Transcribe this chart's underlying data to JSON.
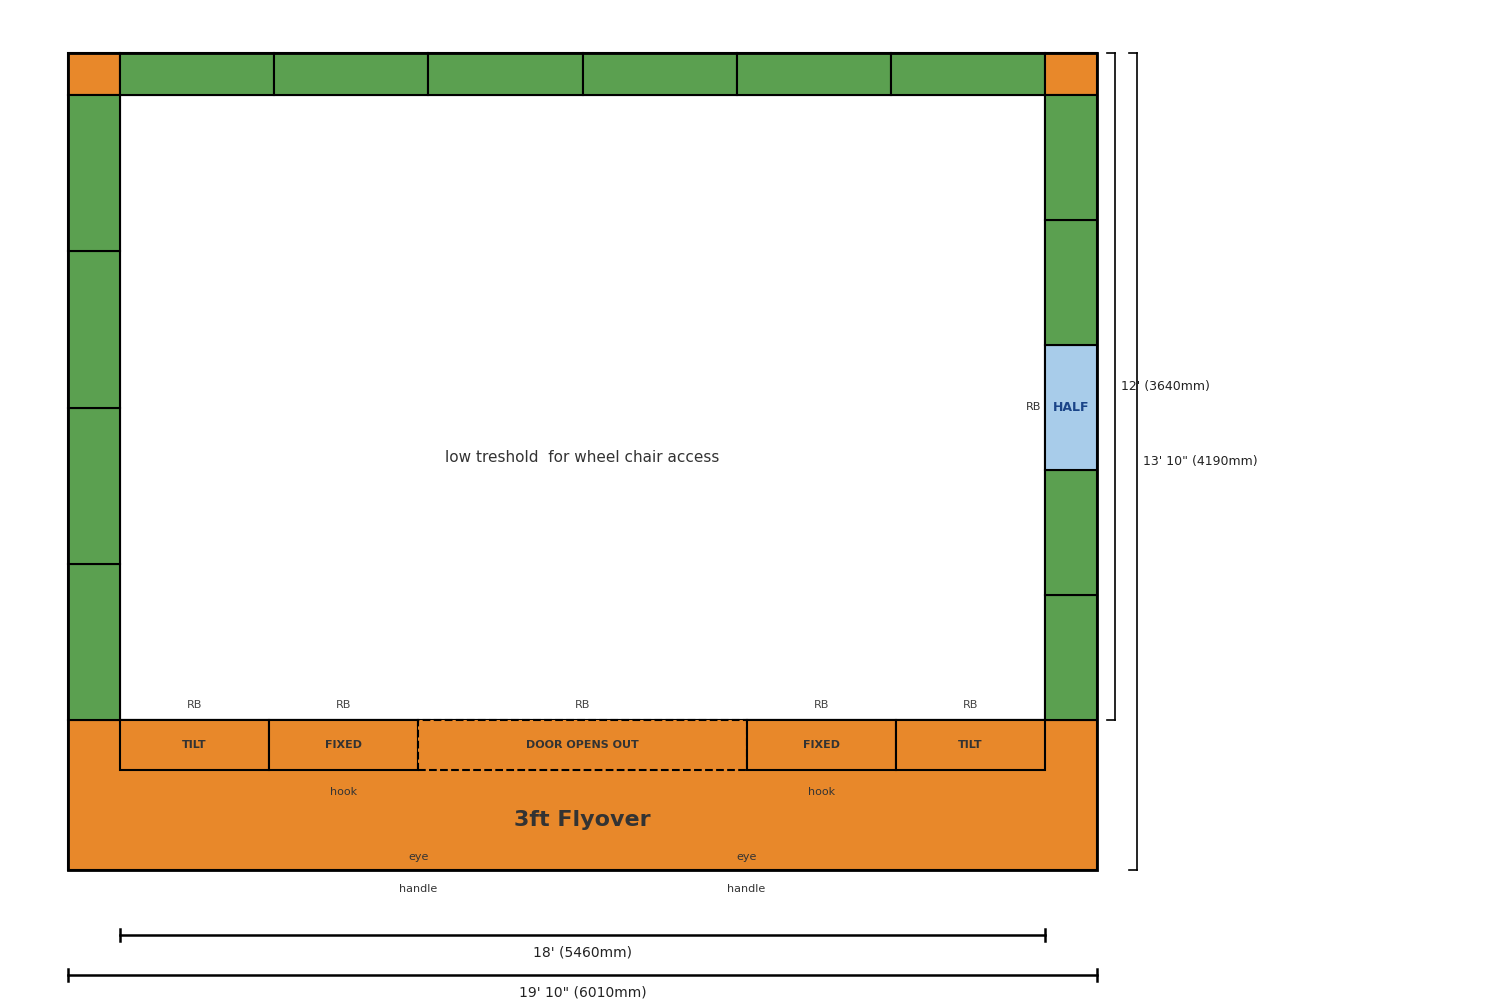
{
  "colors": {
    "orange": "#E8882A",
    "green": "#5BA050",
    "blue": "#A8CCEA",
    "white": "#FFFFFF",
    "black": "#000000",
    "bg": "#FFFFFF"
  },
  "dim_label_12": "12' (3640mm)",
  "dim_label_13": "13' 10\" (4190mm)",
  "dim_label_18": "18' (5460mm)",
  "dim_label_19": "19' 10\" (6010mm)",
  "center_label": "low treshold  for wheel chair access",
  "flyover_label": "3ft Flyover",
  "half_label": "HALF",
  "rb_label": "RB"
}
